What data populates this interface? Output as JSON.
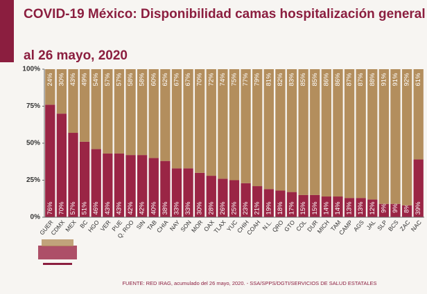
{
  "chart_data": {
    "type": "stacked_bar",
    "title": "COVID-19 México: Disponibilidad camas hospitalización general",
    "subtitle": "al 26 mayo, 2020",
    "source": "FUENTE: RED IRAG, acumulado del 26 mayo, 2020. -   SSA/SPPS/DGTI/SERVICIOS DE SALUD ESTATALES",
    "categories": [
      "GUER",
      "CDMX",
      "MEX",
      "BC",
      "HGO",
      "VER",
      "PUE",
      "Q. ROO",
      "SIN",
      "TAB",
      "CHIA",
      "NAY",
      "SON",
      "MOR",
      "OAX",
      "TLAX",
      "YUC",
      "CHIH",
      "COAH",
      "N.L.",
      "QRO",
      "GTO",
      "COL",
      "DUR",
      "MICH",
      "TAM",
      "CAMP",
      "AGS",
      "JAL",
      "SLP",
      "BCS",
      "ZAC",
      "NAC"
    ],
    "series": [
      {
        "color": "#9a2545",
        "values": [
          76,
          70,
          57,
          51,
          46,
          43,
          43,
          42,
          42,
          40,
          38,
          33,
          33,
          30,
          28,
          26,
          25,
          23,
          21,
          19,
          18,
          17,
          15,
          15,
          14,
          14,
          13,
          13,
          12,
          9,
          9,
          8,
          39
        ],
        "value_labels": [
          "76%",
          "70%",
          "57%",
          "51%",
          "46%",
          "43%",
          "43%",
          "42%",
          "42%",
          "40%",
          "38%",
          "33%",
          "33%",
          "30%",
          "28%",
          "26%",
          "25%",
          "23%",
          "21%",
          "19%",
          "18%",
          "17%",
          "15%",
          "15%",
          "14%",
          "14%",
          "13%",
          "13%",
          "12%",
          "9%",
          "9%",
          "8%",
          "39%"
        ]
      },
      {
        "color": "#b38e5d",
        "values": [
          24,
          30,
          43,
          49,
          54,
          57,
          57,
          58,
          58,
          60,
          62,
          67,
          67,
          70,
          72,
          74,
          75,
          77,
          79,
          81,
          82,
          83,
          85,
          85,
          86,
          86,
          87,
          87,
          88,
          91,
          91,
          92,
          61
        ],
        "value_labels": [
          "24%",
          "30%",
          "43%",
          "49%",
          "54%",
          "57%",
          "57%",
          "58%",
          "58%",
          "60%",
          "62%",
          "67%",
          "67%",
          "70%",
          "72%",
          "74%",
          "75%",
          "77%",
          "79%",
          "81%",
          "82%",
          "83%",
          "85%",
          "85%",
          "86%",
          "86%",
          "87%",
          "87%",
          "88%",
          "91%",
          "91%",
          "92%",
          "61%"
        ]
      }
    ],
    "ylim": [
      0,
      100
    ],
    "yticks": [
      {
        "value": 0,
        "label": "0%"
      },
      {
        "value": 25,
        "label": "25%"
      },
      {
        "value": 50,
        "label": "50%"
      },
      {
        "value": 75,
        "label": "75%"
      },
      {
        "value": 100,
        "label": "100%"
      }
    ]
  }
}
